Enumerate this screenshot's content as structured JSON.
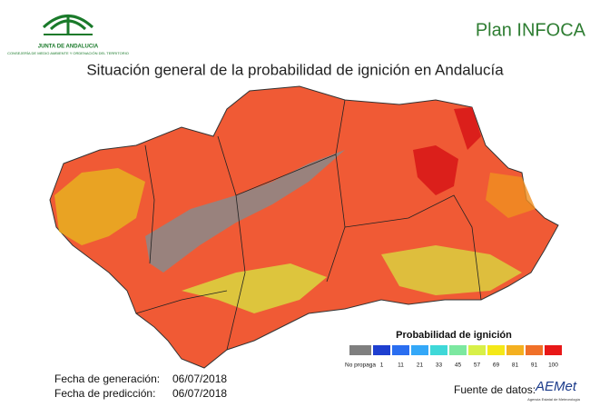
{
  "header": {
    "logo_name": "JUNTA DE ANDALUCIA",
    "logo_department": "CONSEJERÍA DE MEDIO AMBIENTE Y ORDENACIÓN DEL TERRITORIO",
    "plan": "Plan INFOCA",
    "title": "Situación general de la probabilidad de ignición en Andalucía"
  },
  "legend": {
    "title": "Probabilidad de ignición",
    "items": [
      {
        "label": "No propaga",
        "color": "#7f7f7f"
      },
      {
        "label": "1",
        "color": "#1e3fd0"
      },
      {
        "label": "11",
        "color": "#2a6ef0"
      },
      {
        "label": "21",
        "color": "#34a8f8"
      },
      {
        "label": "33",
        "color": "#3fd8d8"
      },
      {
        "label": "45",
        "color": "#7ce8a0"
      },
      {
        "label": "57",
        "color": "#d8f048"
      },
      {
        "label": "69",
        "color": "#f4e818"
      },
      {
        "label": "81",
        "color": "#f4b020"
      },
      {
        "label": "91",
        "color": "#f07028"
      },
      {
        "label": "100",
        "color": "#e81818"
      }
    ]
  },
  "footer": {
    "generation_label": "Fecha de generación:",
    "generation_date": "06/07/2018",
    "prediction_label": "Fecha de predicción:",
    "prediction_date": "06/07/2018",
    "source_label": "Fuente de datos:",
    "source_name": "AEMet",
    "source_full": "Agencia Estatal de Meteorología"
  }
}
